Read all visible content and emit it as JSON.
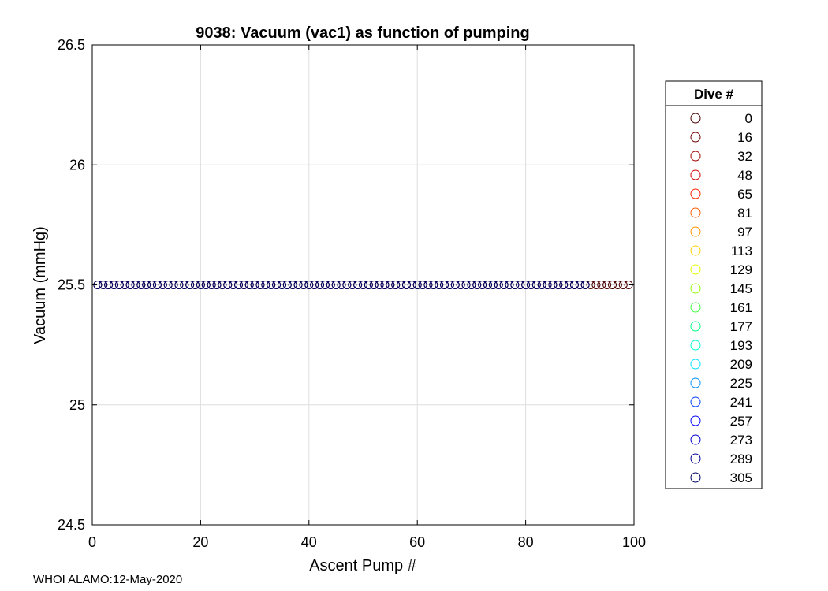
{
  "chart_data": {
    "type": "scatter",
    "title": "9038: Vacuum (vac1) as function of pumping",
    "xlabel": "Ascent Pump #",
    "ylabel": "Vacuum (mmHg)",
    "xlim": [
      0,
      100
    ],
    "ylim": [
      24.5,
      26.5
    ],
    "xticks": [
      "0",
      "20",
      "40",
      "60",
      "80",
      "100"
    ],
    "yticks": [
      "24.5",
      "25",
      "25.5",
      "26",
      "26.5"
    ],
    "grid": true,
    "legend_placement": "outside-right",
    "legend": {
      "title": "Dive #",
      "entries": [
        {
          "label": "0",
          "color": "#4a0000"
        },
        {
          "label": "16",
          "color": "#6e0000"
        },
        {
          "label": "32",
          "color": "#a00000"
        },
        {
          "label": "48",
          "color": "#d00000"
        },
        {
          "label": "65",
          "color": "#ff2000"
        },
        {
          "label": "81",
          "color": "#ff5a00"
        },
        {
          "label": "97",
          "color": "#ff9400"
        },
        {
          "label": "113",
          "color": "#ffd000"
        },
        {
          "label": "129",
          "color": "#e0ff00"
        },
        {
          "label": "145",
          "color": "#90ff00"
        },
        {
          "label": "161",
          "color": "#40ff40"
        },
        {
          "label": "177",
          "color": "#00ff80"
        },
        {
          "label": "193",
          "color": "#00ffd0"
        },
        {
          "label": "209",
          "color": "#00e0ff"
        },
        {
          "label": "225",
          "color": "#0090ff"
        },
        {
          "label": "241",
          "color": "#0040ff"
        },
        {
          "label": "257",
          "color": "#0000ff"
        },
        {
          "label": "273",
          "color": "#0000c8"
        },
        {
          "label": "289",
          "color": "#000096"
        },
        {
          "label": "305",
          "color": "#000064"
        }
      ]
    },
    "series": [
      {
        "name": "0",
        "color": "#4a0000",
        "y": 25.5,
        "x_range": [
          1,
          99
        ]
      },
      {
        "name": "305",
        "color": "#000064",
        "y": 25.5,
        "x_range": [
          1,
          91
        ]
      }
    ]
  },
  "footer": "WHOI ALAMO:12-May-2020"
}
